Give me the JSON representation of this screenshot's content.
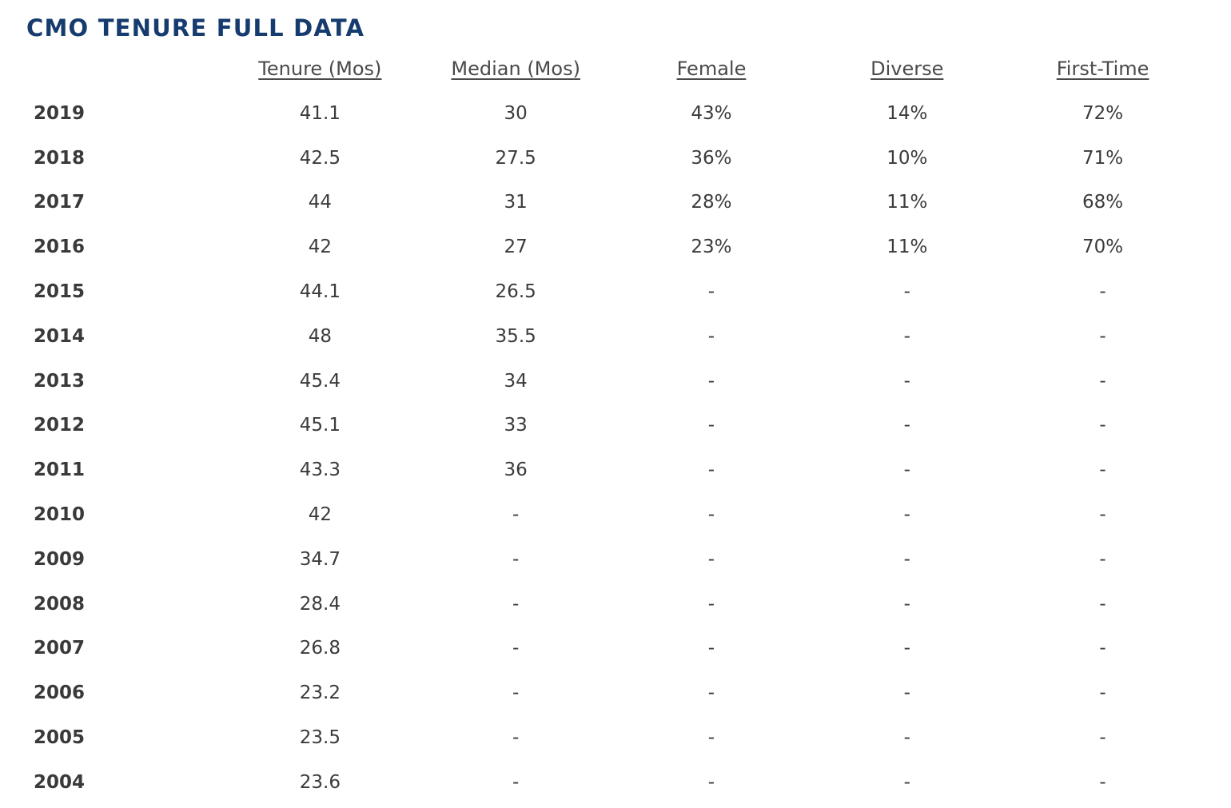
{
  "title": "CMO TENURE FULL DATA",
  "chart_data": {
    "type": "table",
    "title": "CMO TENURE FULL DATA",
    "columns": [
      "",
      "Tenure (Mos)",
      "Median (Mos)",
      "Female",
      "Diverse",
      "First-Time"
    ],
    "rows": [
      {
        "year": "2019",
        "tenure": "41.1",
        "median": "30",
        "female": "43%",
        "diverse": "14%",
        "first_time": "72%"
      },
      {
        "year": "2018",
        "tenure": "42.5",
        "median": "27.5",
        "female": "36%",
        "diverse": "10%",
        "first_time": "71%"
      },
      {
        "year": "2017",
        "tenure": "44",
        "median": "31",
        "female": "28%",
        "diverse": "11%",
        "first_time": "68%"
      },
      {
        "year": "2016",
        "tenure": "42",
        "median": "27",
        "female": "23%",
        "diverse": "11%",
        "first_time": "70%"
      },
      {
        "year": "2015",
        "tenure": "44.1",
        "median": "26.5",
        "female": "-",
        "diverse": "-",
        "first_time": "-"
      },
      {
        "year": "2014",
        "tenure": "48",
        "median": "35.5",
        "female": "-",
        "diverse": "-",
        "first_time": "-"
      },
      {
        "year": "2013",
        "tenure": "45.4",
        "median": "34",
        "female": "-",
        "diverse": "-",
        "first_time": "-"
      },
      {
        "year": "2012",
        "tenure": "45.1",
        "median": "33",
        "female": "-",
        "diverse": "-",
        "first_time": "-"
      },
      {
        "year": "2011",
        "tenure": "43.3",
        "median": "36",
        "female": "-",
        "diverse": "-",
        "first_time": "-"
      },
      {
        "year": "2010",
        "tenure": "42",
        "median": "-",
        "female": "-",
        "diverse": "-",
        "first_time": "-"
      },
      {
        "year": "2009",
        "tenure": "34.7",
        "median": "-",
        "female": "-",
        "diverse": "-",
        "first_time": "-"
      },
      {
        "year": "2008",
        "tenure": "28.4",
        "median": "-",
        "female": "-",
        "diverse": "-",
        "first_time": "-"
      },
      {
        "year": "2007",
        "tenure": "26.8",
        "median": "-",
        "female": "-",
        "diverse": "-",
        "first_time": "-"
      },
      {
        "year": "2006",
        "tenure": "23.2",
        "median": "-",
        "female": "-",
        "diverse": "-",
        "first_time": "-"
      },
      {
        "year": "2005",
        "tenure": "23.5",
        "median": "-",
        "female": "-",
        "diverse": "-",
        "first_time": "-"
      },
      {
        "year": "2004",
        "tenure": "23.6",
        "median": "-",
        "female": "-",
        "diverse": "-",
        "first_time": "-"
      }
    ]
  },
  "colors": {
    "title": "#163b6e",
    "header_text": "#4a4a4a",
    "body_text": "#3b3b3b"
  }
}
